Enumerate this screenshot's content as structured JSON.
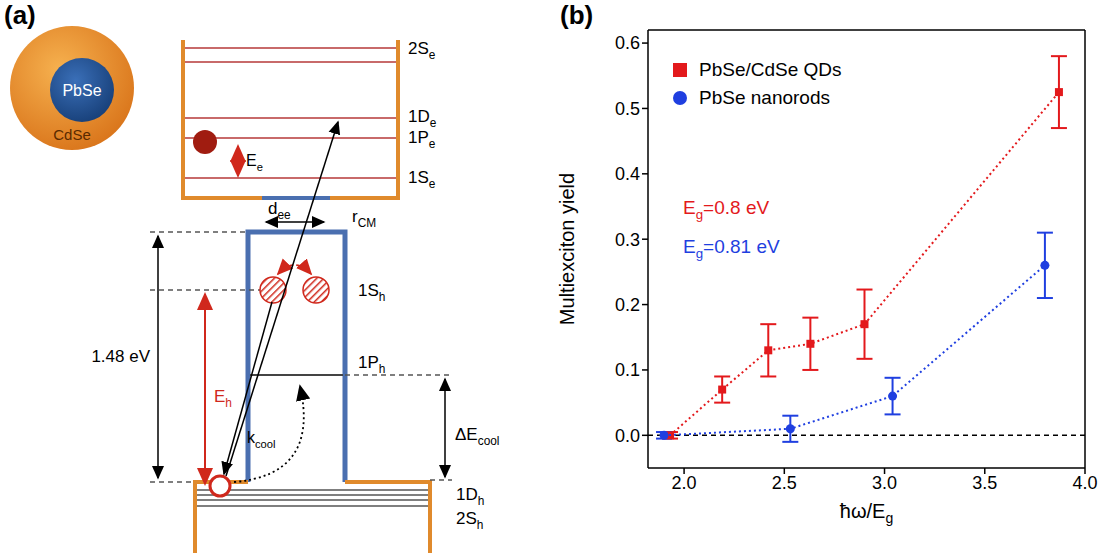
{
  "panel_labels": [
    "(a)",
    "(b)"
  ],
  "diagram": {
    "core_shell": {
      "core": "PbSe",
      "shell": "CdSe"
    },
    "electron_levels": [
      [
        "2S",
        "e"
      ],
      [
        "1D",
        "e"
      ],
      [
        "1P",
        "e"
      ],
      [
        "1S",
        "e"
      ]
    ],
    "hole_levels": [
      [
        "1S",
        "h"
      ],
      [
        "1P",
        "h"
      ],
      [
        "1D",
        "h"
      ],
      [
        "2S",
        "h"
      ]
    ],
    "electron_energy": [
      "E",
      "e"
    ],
    "hole_distance": [
      "d",
      "ee"
    ],
    "cm_distance": [
      "r",
      "CM"
    ],
    "band_offset": [
      "1.48 eV"
    ],
    "hole_energy": [
      "E",
      "h"
    ],
    "cooling_gap": [
      "ΔE",
      "cool"
    ],
    "cooling_rate": [
      "k",
      "cool"
    ]
  },
  "chart_data": {
    "type": "scatter",
    "x_label": [
      "ħω/E",
      "g"
    ],
    "y_label": "Multiexciton yield",
    "xlim": [
      1.82,
      4.0
    ],
    "xticks": [
      {
        "value": 2,
        "label": "2.0"
      },
      2.5,
      {
        "value": 3,
        "label": "3.0"
      },
      3.5,
      {
        "value": 4,
        "label": "4.0"
      }
    ],
    "ylim": [
      -0.05,
      0.62
    ],
    "yticks": [
      {
        "value": 0,
        "label": "0.0"
      },
      0.1,
      0.2,
      0.3,
      0.4,
      0.5,
      0.6
    ],
    "legend": "upper left",
    "hlines": [
      0
    ],
    "annotations": [
      {
        "text": [
          "E",
          "g",
          "=0.8 eV"
        ],
        "color": "#e3191c"
      },
      {
        "text": [
          "E",
          "g",
          "=0.81 eV"
        ],
        "color": "#1f3fe0"
      }
    ],
    "series": [
      {
        "name": "PbSe/CdSe QDs",
        "color": "#e3191c",
        "marker": "square",
        "line_style": "dotted",
        "x": [
          1.93,
          2.19,
          2.42,
          2.63,
          2.9,
          3.87
        ],
        "values": [
          0.0,
          0.07,
          0.13,
          0.14,
          0.17,
          0.525
        ],
        "errors": [
          0.005,
          0.02,
          0.04,
          0.04,
          0.053,
          0.055
        ]
      },
      {
        "name": "PbSe nanorods",
        "color": "#1f3fe0",
        "marker": "circle",
        "line_style": "dotted",
        "x": [
          1.9,
          2.53,
          3.04,
          3.8
        ],
        "values": [
          0.0,
          0.01,
          0.06,
          0.26
        ],
        "errors": [
          0.005,
          0.02,
          0.028,
          0.05
        ]
      }
    ]
  }
}
